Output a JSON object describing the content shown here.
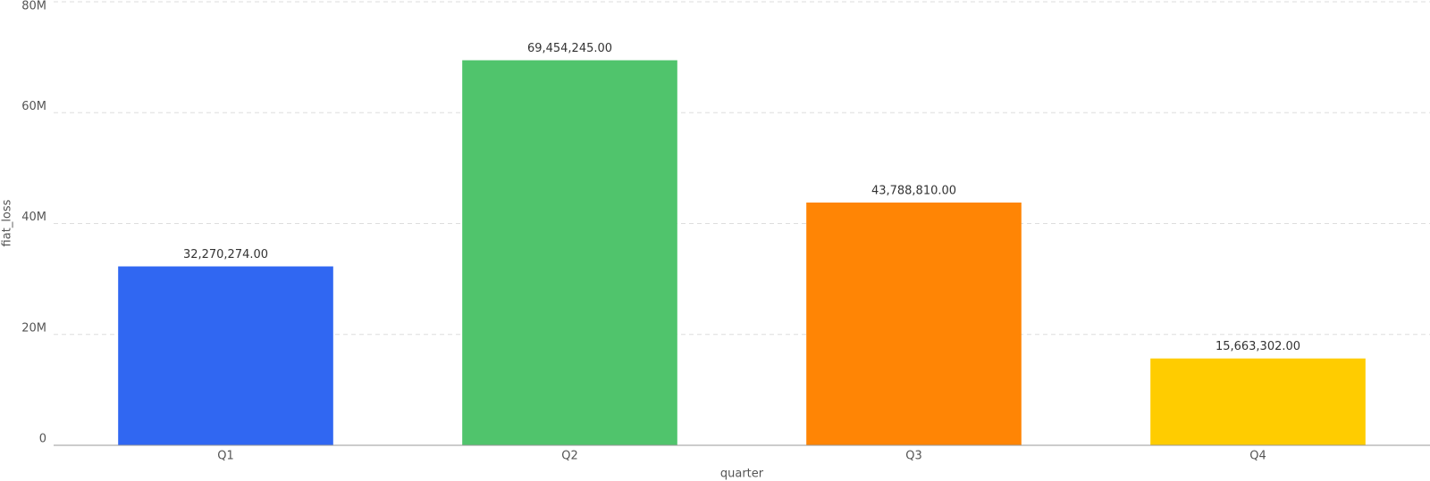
{
  "chart_data": {
    "type": "bar",
    "x_label": "quarter",
    "y_label": "fiat_loss",
    "categories": [
      "Q1",
      "Q2",
      "Q3",
      "Q4"
    ],
    "values": [
      32270274,
      69454245,
      43788810,
      15663302
    ],
    "value_labels": [
      "32,270,274.00",
      "69,454,245.00",
      "43,788,810.00",
      "15,663,302.00"
    ],
    "colors": [
      "#3067f2",
      "#50c46c",
      "#ff8505",
      "#ffcc00"
    ],
    "ylim": [
      0,
      80000000
    ],
    "yticks": [
      0,
      {
        "value": 20000000,
        "label": "20M"
      },
      {
        "value": 40000000,
        "label": "40M"
      },
      {
        "value": 60000000,
        "label": "60M"
      },
      {
        "value": 80000000,
        "label": "80M"
      }
    ],
    "grid": true
  }
}
